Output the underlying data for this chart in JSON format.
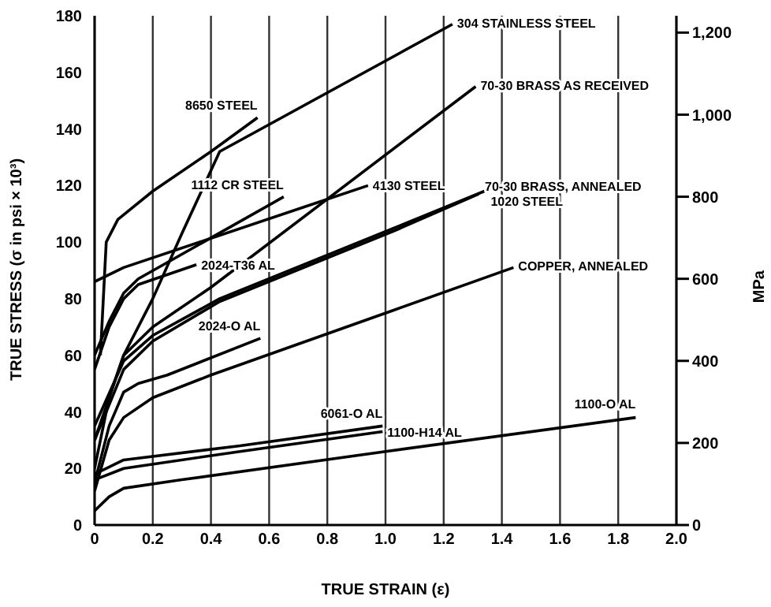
{
  "chart_data": {
    "type": "line",
    "xlabel": "TRUE STRAIN (ε)",
    "ylabel": "TRUE STRESS (σ in psi × 10³)",
    "y2label": "MPa",
    "xlim": [
      0,
      2
    ],
    "xticks": [
      0,
      0.2,
      0.4,
      0.6,
      0.8,
      {
        "value": 1,
        "label": "1.0"
      },
      1.2,
      1.4,
      1.6,
      1.8,
      {
        "value": 2,
        "label": "2.0"
      }
    ],
    "ylim": [
      0,
      180
    ],
    "yticks": [
      0,
      20,
      40,
      60,
      80,
      100,
      120,
      140,
      160,
      180
    ],
    "y2lim": [
      0,
      1241
    ],
    "y2ticks": [
      0,
      200,
      400,
      600,
      800,
      {
        "value": 1000,
        "label": "1,000"
      },
      {
        "value": 1200,
        "label": "1,200"
      }
    ],
    "grid": true,
    "legend": false,
    "marker": "none",
    "line_style": "solid",
    "series": [
      {
        "name": "304 STAINLESS STEEL",
        "color": "#000000",
        "x": [
          0,
          0.1,
          0.2,
          0.3,
          0.43,
          1.23
        ],
        "values": [
          30,
          60,
          80,
          103,
          132,
          177
        ]
      },
      {
        "name": "70-30 BRASS AS RECEIVED",
        "color": "#000000",
        "x": [
          0,
          0.05,
          0.1,
          0.2,
          0.4,
          1.31
        ],
        "values": [
          20,
          45,
          60,
          70,
          84,
          155
        ]
      },
      {
        "name": "8650 STEEL",
        "color": "#000000",
        "x": [
          0.02,
          0.04,
          0.08,
          0.2,
          0.4,
          0.56
        ],
        "values": [
          60,
          100,
          108,
          118,
          132,
          144
        ]
      },
      {
        "name": "1112 CR STEEL",
        "color": "#000000",
        "x": [
          0,
          0.05,
          0.1,
          0.15,
          0.65
        ],
        "values": [
          60,
          72,
          82,
          87,
          116
        ]
      },
      {
        "name": "2024-T36 AL",
        "color": "#000000",
        "x": [
          0,
          0.05,
          0.1,
          0.15,
          0.35
        ],
        "values": [
          55,
          70,
          80,
          85,
          92
        ]
      },
      {
        "name": "4130 STEEL",
        "color": "#000000",
        "x": [
          0,
          0.1,
          0.94
        ],
        "values": [
          86,
          91,
          120
        ]
      },
      {
        "name": "70-30 BRASS, ANNEALED",
        "color": "#000000",
        "x": [
          0,
          0.1,
          0.2,
          0.43,
          1.03,
          1.32
        ],
        "values": [
          30,
          55,
          65,
          79,
          104,
          117
        ]
      },
      {
        "name": "1020 STEEL",
        "color": "#000000",
        "x": [
          0,
          0.1,
          0.2,
          0.43,
          1.03,
          1.34
        ],
        "values": [
          35,
          58,
          67,
          80,
          105,
          118
        ]
      },
      {
        "name": "COPPER, ANNEALED",
        "color": "#000000",
        "x": [
          0,
          0.05,
          0.1,
          0.2,
          0.4,
          1.03,
          1.44
        ],
        "values": [
          12,
          30,
          38,
          45,
          53,
          76,
          91
        ]
      },
      {
        "name": "2024-O AL",
        "color": "#000000",
        "x": [
          0,
          0.05,
          0.1,
          0.15,
          0.25,
          0.57
        ],
        "values": [
          15,
          35,
          47,
          50,
          53,
          66
        ]
      },
      {
        "name": "6061-O AL",
        "color": "#000000",
        "x": [
          0,
          0.1,
          0.5,
          0.99
        ],
        "values": [
          18,
          23,
          28,
          35
        ]
      },
      {
        "name": "1100-H14 AL",
        "color": "#000000",
        "x": [
          0,
          0.1,
          0.5,
          0.99
        ],
        "values": [
          16,
          20,
          26,
          33
        ]
      },
      {
        "name": "1100-O AL",
        "color": "#000000",
        "x": [
          0,
          0.05,
          0.1,
          0.3,
          1.0,
          1.86
        ],
        "values": [
          5,
          10,
          13,
          16,
          26,
          38
        ]
      }
    ]
  }
}
